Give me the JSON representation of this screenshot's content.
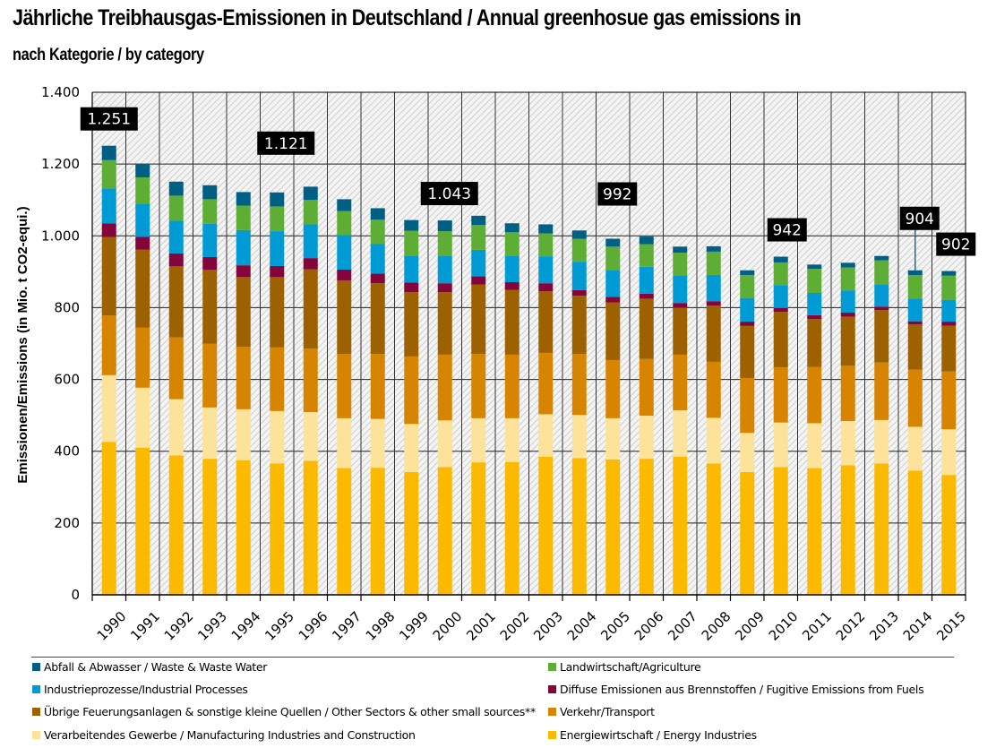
{
  "header": {
    "title": "Jährliche Treibhausgas-Emissionen in Deutschland / Annual greenhosue gas emissions in",
    "subtitle": "nach Kategorie / by category"
  },
  "chart_data": {
    "type": "bar",
    "stacked": true,
    "title": "Jährliche Treibhausgas-Emissionen in Deutschland / Annual greenhosue gas emissions in",
    "subtitle": "nach Kategorie / by category",
    "xlabel": "",
    "ylabel": "Emissionen/Emissions (in Mio. t CO2-equi.)",
    "ylim": [
      0,
      1400
    ],
    "yticks": [
      0,
      200,
      400,
      600,
      800,
      1000,
      1200,
      1400
    ],
    "ytick_labels": [
      "0",
      "200",
      "400",
      "600",
      "800",
      "1.000",
      "1.200",
      "1.400"
    ],
    "grid": true,
    "background_pattern": "diagonal-hatch",
    "legend_position": "bottom",
    "categories": [
      "1990",
      "1991",
      "1992",
      "1993",
      "1994",
      "1995",
      "1996",
      "1997",
      "1998",
      "1999",
      "2000",
      "2001",
      "2002",
      "2003",
      "2004",
      "2005",
      "2006",
      "2007",
      "2008",
      "2009",
      "2010",
      "2011",
      "2012",
      "2013",
      "2014",
      "2015"
    ],
    "series": [
      {
        "name": "Energiewirtschaft / Energy Industries",
        "color": "#FBB900",
        "values": [
          426,
          410,
          388,
          379,
          375,
          366,
          373,
          353,
          354,
          342,
          356,
          369,
          370,
          385,
          381,
          377,
          379,
          385,
          366,
          342,
          356,
          353,
          361,
          366,
          346,
          334
        ]
      },
      {
        "name": "Verarbeitendes Gewerbe / Manufacturing Industries and Construction",
        "color": "#FDE29A",
        "values": [
          186,
          167,
          157,
          143,
          142,
          146,
          136,
          139,
          136,
          134,
          130,
          123,
          122,
          118,
          120,
          115,
          120,
          129,
          127,
          109,
          124,
          125,
          123,
          121,
          122,
          127
        ]
      },
      {
        "name": "Verkehr/Transport",
        "color": "#D78400",
        "values": [
          166,
          167,
          172,
          178,
          174,
          177,
          177,
          179,
          181,
          188,
          183,
          179,
          177,
          171,
          170,
          162,
          158,
          155,
          156,
          153,
          154,
          157,
          154,
          160,
          159,
          161
        ]
      },
      {
        "name": "Übrige Feuerungsanlagen & sonstige kleine Quellen / Other Sectors & other small sources**",
        "color": "#9E6100",
        "values": [
          219,
          218,
          198,
          205,
          194,
          196,
          221,
          205,
          197,
          179,
          174,
          193,
          180,
          172,
          162,
          160,
          168,
          131,
          157,
          145,
          154,
          133,
          137,
          146,
          126,
          128
        ]
      },
      {
        "name": "Diffuse Emissionen aus Brennstoffen / Fugitive Emissions from Fuels",
        "color": "#83053C",
        "values": [
          38,
          35,
          36,
          36,
          33,
          31,
          31,
          30,
          27,
          27,
          25,
          23,
          22,
          22,
          16,
          16,
          14,
          13,
          12,
          12,
          11,
          11,
          11,
          10,
          9,
          11
        ]
      },
      {
        "name": "Industrieprozesse/Industrial Processes",
        "color": "#009BD5",
        "values": [
          97,
          93,
          91,
          93,
          98,
          97,
          94,
          96,
          82,
          75,
          77,
          74,
          74,
          75,
          79,
          75,
          75,
          77,
          73,
          66,
          64,
          62,
          62,
          62,
          63,
          61
        ]
      },
      {
        "name": "Landwirtschaft/Agriculture",
        "color": "#5EAD35",
        "values": [
          79,
          73,
          70,
          68,
          68,
          69,
          68,
          67,
          68,
          69,
          68,
          69,
          65,
          64,
          64,
          65,
          63,
          63,
          65,
          64,
          63,
          67,
          64,
          67,
          66,
          67
        ]
      },
      {
        "name": "Abfall & Abwasser / Waste & Waste Water",
        "color": "#005F85",
        "values": [
          40,
          38,
          39,
          39,
          38,
          39,
          37,
          33,
          32,
          30,
          30,
          26,
          25,
          25,
          23,
          22,
          21,
          17,
          15,
          13,
          16,
          12,
          13,
          12,
          13,
          13
        ]
      }
    ],
    "annotations": [
      {
        "year": "1990",
        "label": "1.251",
        "value": 1251
      },
      {
        "year": "1995",
        "label": "1.121",
        "value": 1121
      },
      {
        "year": "2000",
        "label": "1.043",
        "value": 1043
      },
      {
        "year": "2005",
        "label": "992",
        "value": 992
      },
      {
        "year": "2010",
        "label": "942",
        "value": 942
      },
      {
        "year": "2014",
        "label": "904",
        "value": 904,
        "leader_line": true
      },
      {
        "year": "2015",
        "label": "902",
        "value": 902
      }
    ]
  },
  "legend": {
    "items": [
      {
        "label": "Abfall & Abwasser / Waste & Waste Water",
        "color": "#005F85"
      },
      {
        "label": "Landwirtschaft/Agriculture",
        "color": "#5EAD35"
      },
      {
        "label": "Industrieprozesse/Industrial Processes",
        "color": "#009BD5"
      },
      {
        "label": "Diffuse Emissionen aus Brennstoffen / Fugitive Emissions from Fuels",
        "color": "#83053C"
      },
      {
        "label": "Übrige Feuerungsanlagen & sonstige kleine Quellen / Other Sectors & other small sources**",
        "color": "#9E6100"
      },
      {
        "label": "Verkehr/Transport",
        "color": "#D78400"
      },
      {
        "label": "Verarbeitendes Gewerbe / Manufacturing Industries and Construction",
        "color": "#FDE29A"
      },
      {
        "label": "Energiewirtschaft / Energy Industries",
        "color": "#FBB900"
      }
    ]
  }
}
